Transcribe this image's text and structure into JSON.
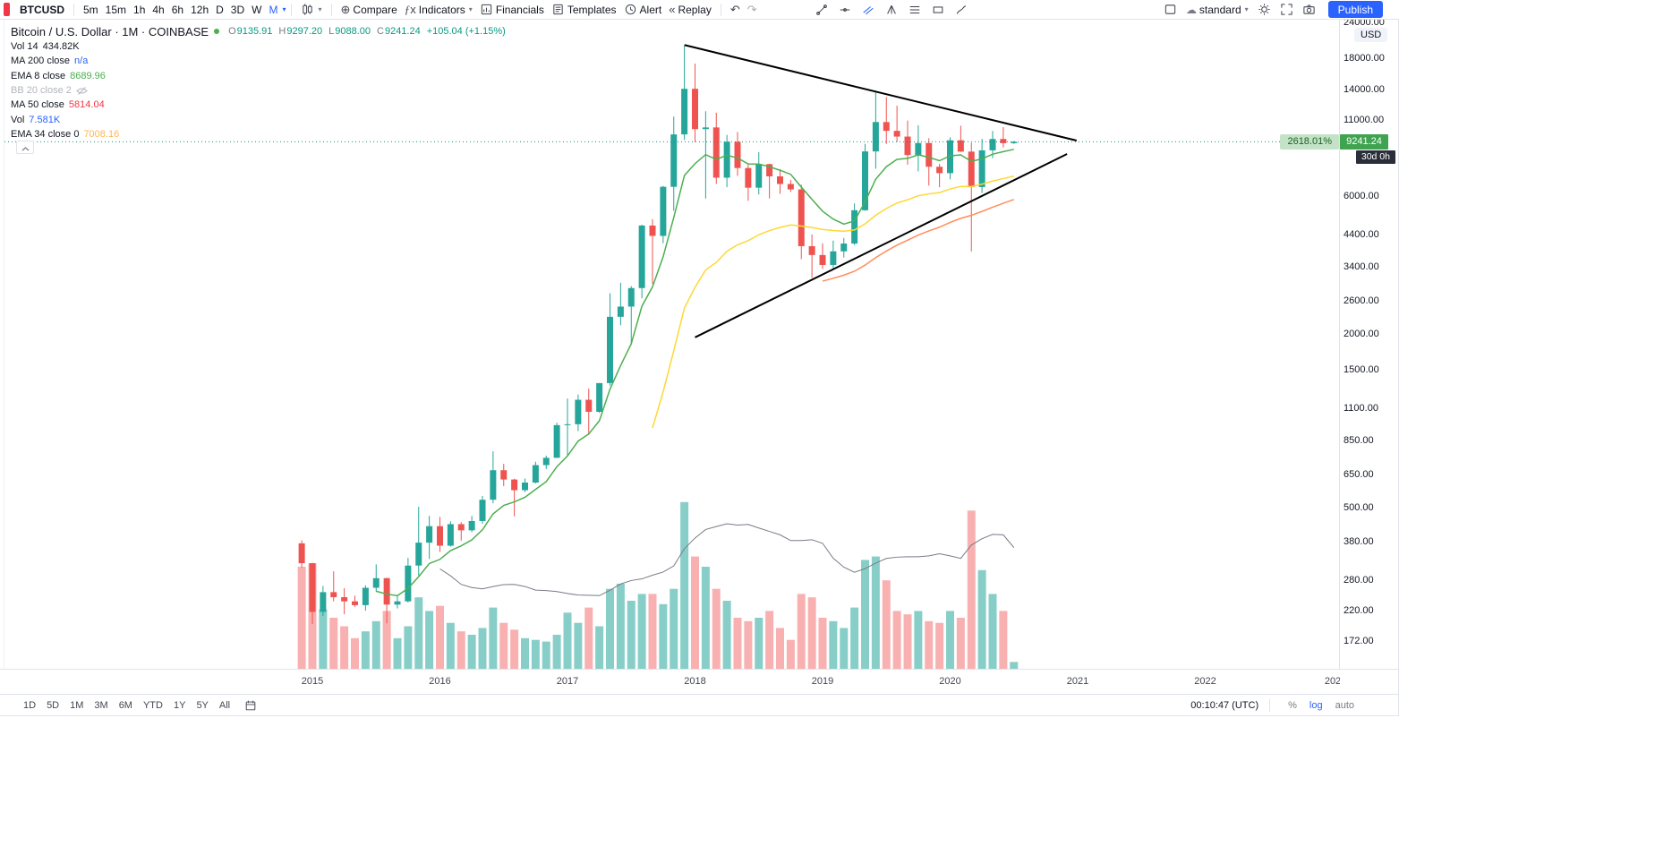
{
  "toolbar_top": {
    "symbol": "BTCUSD",
    "intervals": [
      "5m",
      "15m",
      "1h",
      "4h",
      "6h",
      "12h",
      "D",
      "3D",
      "W",
      "M"
    ],
    "active_interval": "M",
    "compare_label": "Compare",
    "indicators_label": "Indicators",
    "financials_label": "Financials",
    "templates_label": "Templates",
    "alert_label": "Alert",
    "replay_label": "Replay",
    "layout_label": "standard",
    "publish_label": "Publish",
    "drawing_tools": [
      "trend-line-tool",
      "horizontal-line-tool",
      "parallel-channel-tool",
      "pitchfork-tool",
      "fib-retracement-tool",
      "long-position-tool",
      "brush-tool"
    ],
    "active_drawing_tool_index": 2
  },
  "legend": {
    "title": "Bitcoin / U.S. Dollar · 1M · COINBASE",
    "ohlc": [
      {
        "k": "O",
        "v": "9135.91"
      },
      {
        "k": "H",
        "v": "9297.20"
      },
      {
        "k": "L",
        "v": "9088.00"
      },
      {
        "k": "C",
        "v": "9241.24"
      }
    ],
    "change": "+105.04 (+1.15%)",
    "rows": [
      {
        "label": "Vol 14",
        "value": "434.82K",
        "color": "#131722",
        "hidden": false
      },
      {
        "label": "MA 200 close",
        "value": "n/a",
        "color": "#2962ff",
        "hidden": false
      },
      {
        "label": "EMA 8 close",
        "value": "8689.96",
        "color": "#4caf50",
        "hidden": false
      },
      {
        "label": "BB 20 close 2",
        "value": "",
        "color": "#b2b5be",
        "hidden": true
      },
      {
        "label": "MA 50 close",
        "value": "5814.04",
        "color": "#f23645",
        "hidden": false
      },
      {
        "label": "Vol",
        "value": "7.581K",
        "color": "#2962ff",
        "hidden": false
      },
      {
        "label": "EMA 34 close 0",
        "value": "7008.16",
        "color": "#ffb74d",
        "hidden": false
      }
    ]
  },
  "price_axis": {
    "currency": "USD",
    "ticks": [
      "24000.00",
      "18000.00",
      "14000.00",
      "11000.00",
      "6000.00",
      "4400.00",
      "3400.00",
      "2600.00",
      "2000.00",
      "1500.00",
      "1100.00",
      "850.00",
      "650.00",
      "500.00",
      "380.00",
      "280.00",
      "220.00",
      "172.00"
    ],
    "last_price_label": "9241.24",
    "pct_label": "2618.01%",
    "countdown_label": "30d 0h"
  },
  "time_axis": {
    "years": [
      "2015",
      "2016",
      "2017",
      "2018",
      "2019",
      "2020",
      "2021",
      "2022",
      "202"
    ]
  },
  "toolbar_bottom": {
    "ranges": [
      "1D",
      "5D",
      "1M",
      "3M",
      "6M",
      "YTD",
      "1Y",
      "5Y",
      "All"
    ],
    "clock": "00:10:47 (UTC)",
    "toggles": [
      "%",
      "log",
      "auto"
    ],
    "active_toggle": "log"
  },
  "ui_colors": {
    "accent_blue": "#2962ff",
    "price_badge_bg": "#3fa350",
    "pct_badge_bg": "#c3e2c7",
    "pct_badge_text": "#1a6322",
    "countdown_badge_bg": "#2a2e39",
    "toolbar_border": "#e0e3eb"
  },
  "chart_data": {
    "type": "candlestick",
    "title": "Bitcoin / U.S. Dollar, 1M, COINBASE",
    "scale": "log",
    "interval": "1M",
    "start_month": "2014-12",
    "ohlc": [
      [
        375,
        384,
        309,
        320
      ],
      [
        320,
        321,
        197,
        217
      ],
      [
        217,
        267,
        210,
        254
      ],
      [
        254,
        300,
        236,
        244
      ],
      [
        244,
        262,
        213,
        236
      ],
      [
        236,
        247,
        226,
        229
      ],
      [
        229,
        268,
        219,
        263
      ],
      [
        263,
        317,
        255,
        284
      ],
      [
        284,
        285,
        198,
        230
      ],
      [
        230,
        246,
        223,
        236
      ],
      [
        236,
        334,
        234,
        314
      ],
      [
        314,
        502,
        290,
        377
      ],
      [
        377,
        467,
        331,
        430
      ],
      [
        430,
        463,
        350,
        368
      ],
      [
        368,
        447,
        365,
        437
      ],
      [
        437,
        444,
        383,
        416
      ],
      [
        416,
        467,
        410,
        448
      ],
      [
        448,
        547,
        438,
        531
      ],
      [
        531,
        781,
        516,
        672
      ],
      [
        672,
        707,
        592,
        624
      ],
      [
        624,
        628,
        465,
        573
      ],
      [
        573,
        629,
        565,
        609
      ],
      [
        609,
        719,
        605,
        700
      ],
      [
        700,
        755,
        678,
        742
      ],
      [
        742,
        982,
        741,
        963
      ],
      [
        963,
        1191,
        752,
        970
      ],
      [
        970,
        1230,
        918,
        1179
      ],
      [
        1179,
        1290,
        891,
        1071
      ],
      [
        1071,
        1347,
        1062,
        1347
      ],
      [
        1347,
        2760,
        1320,
        2286
      ],
      [
        2286,
        2999,
        2138,
        2480
      ],
      [
        2480,
        2920,
        1850,
        2875
      ],
      [
        2875,
        4765,
        2650,
        4735
      ],
      [
        4735,
        4980,
        2972,
        4360
      ],
      [
        4360,
        6498,
        4110,
        6450
      ],
      [
        6450,
        11300,
        5325,
        9800
      ],
      [
        9800,
        19891,
        9380,
        14100
      ],
      [
        14100,
        17234,
        9222,
        10221
      ],
      [
        10221,
        11786,
        5873,
        10360
      ],
      [
        10360,
        11650,
        6600,
        6938
      ],
      [
        6938,
        9767,
        6430,
        9240
      ],
      [
        9240,
        9990,
        7041,
        7494
      ],
      [
        7494,
        7780,
        5770,
        6404
      ],
      [
        6404,
        8507,
        6070,
        7730
      ],
      [
        7730,
        7760,
        5880,
        7011
      ],
      [
        7011,
        7429,
        6100,
        6597
      ],
      [
        6597,
        6810,
        6190,
        6318
      ],
      [
        6318,
        6560,
        3620,
        4017
      ],
      [
        4017,
        4410,
        3122,
        3742
      ],
      [
        3742,
        4110,
        3350,
        3457
      ],
      [
        3457,
        4199,
        3373,
        3854
      ],
      [
        3854,
        4290,
        3670,
        4102
      ],
      [
        4102,
        5650,
        4050,
        5350
      ],
      [
        5350,
        9090,
        5330,
        8555
      ],
      [
        8555,
        13880,
        7450,
        10817
      ],
      [
        10817,
        13200,
        9080,
        10080
      ],
      [
        10080,
        12325,
        9230,
        9630
      ],
      [
        9630,
        10950,
        7700,
        8310
      ],
      [
        8310,
        10540,
        7293,
        9150
      ],
      [
        9150,
        9505,
        6515,
        7569
      ],
      [
        7569,
        7750,
        6430,
        7193
      ],
      [
        7193,
        9570,
        6850,
        9350
      ],
      [
        9350,
        10500,
        8520,
        8543
      ],
      [
        8543,
        9170,
        3850,
        6438
      ],
      [
        6438,
        9460,
        6140,
        8629
      ],
      [
        8629,
        10070,
        8110,
        9448
      ],
      [
        9448,
        10380,
        8830,
        9138
      ],
      [
        9135.91,
        9297.2,
        9088,
        9241.24
      ]
    ],
    "volumes": [
      0.6,
      0.62,
      0.35,
      0.3,
      0.25,
      0.18,
      0.22,
      0.28,
      0.34,
      0.18,
      0.25,
      0.42,
      0.34,
      0.37,
      0.27,
      0.22,
      0.2,
      0.24,
      0.36,
      0.27,
      0.23,
      0.18,
      0.17,
      0.16,
      0.2,
      0.33,
      0.27,
      0.36,
      0.25,
      0.47,
      0.5,
      0.4,
      0.44,
      0.44,
      0.38,
      0.47,
      0.98,
      0.66,
      0.6,
      0.47,
      0.4,
      0.3,
      0.28,
      0.3,
      0.34,
      0.24,
      0.17,
      0.44,
      0.42,
      0.3,
      0.28,
      0.24,
      0.36,
      0.64,
      0.66,
      0.52,
      0.34,
      0.32,
      0.34,
      0.28,
      0.27,
      0.34,
      0.3,
      0.93,
      0.58,
      0.44,
      0.34,
      0.04
    ],
    "volume_ma_length": 14,
    "overlays": [
      {
        "name": "EMA 8",
        "type": "ema",
        "length": 8,
        "color": "#4caf50",
        "last": 8689.96
      },
      {
        "name": "EMA 34",
        "type": "ema",
        "length": 34,
        "color": "#fdd835",
        "last": 7008.16
      },
      {
        "name": "MA 50",
        "type": "sma",
        "length": 50,
        "color": "#ff8d5a",
        "last": 5814.04
      },
      {
        "name": "MA 200",
        "type": "sma",
        "length": 200,
        "color": "#2962ff",
        "last": null
      }
    ],
    "trendlines": [
      {
        "m1": 35.0,
        "p1": 20000,
        "m2": 71.9,
        "p2": 9330
      },
      {
        "m1": 36.0,
        "p1": 1940,
        "m2": 71.0,
        "p2": 8380
      }
    ],
    "last_price": 9241.24,
    "ylim_log": [
      160,
      26000
    ],
    "colors": {
      "up": "#26a69a",
      "down": "#ef5350",
      "vol_up": "rgba(38,166,154,0.55)",
      "vol_down": "rgba(239,83,80,0.45)",
      "vol_ma": "#787b86",
      "last_price_line": "#089981",
      "trendline": "#000000"
    }
  }
}
